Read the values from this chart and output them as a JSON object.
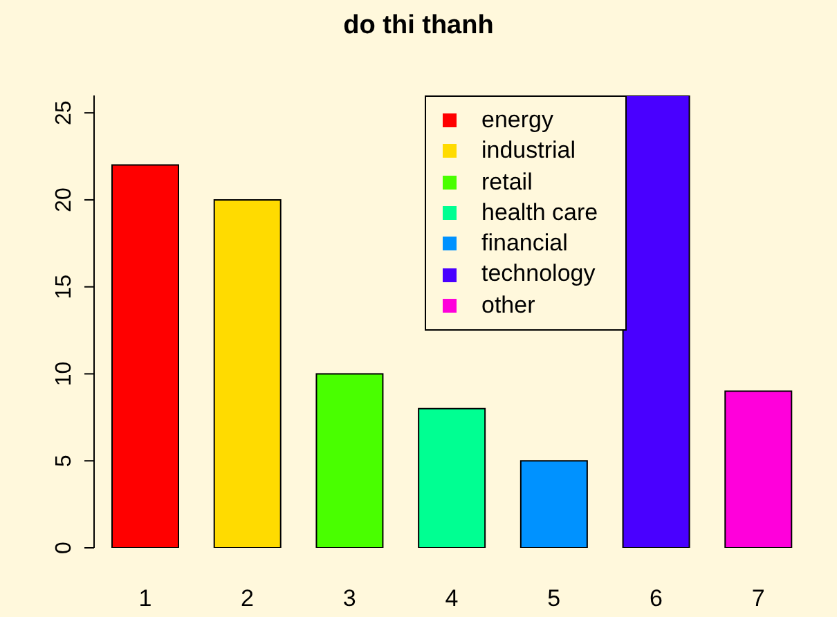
{
  "chart_data": {
    "type": "bar",
    "title": "do thi thanh",
    "stacked": true,
    "categories": [
      "1",
      "2",
      "3",
      "4",
      "5",
      "6",
      "7"
    ],
    "series": [
      {
        "name": "energy",
        "color": "#ff0000",
        "values": [
          22,
          null,
          null,
          null,
          null,
          null,
          null
        ]
      },
      {
        "name": "industrial",
        "color": "#ffdb00",
        "values": [
          null,
          20,
          null,
          null,
          null,
          null,
          null
        ]
      },
      {
        "name": "retail",
        "color": "#49ff00",
        "values": [
          null,
          null,
          10,
          null,
          null,
          null,
          null
        ]
      },
      {
        "name": "health care",
        "color": "#00ff92",
        "values": [
          null,
          null,
          null,
          8,
          null,
          null,
          null
        ]
      },
      {
        "name": "financial",
        "color": "#0092ff",
        "values": [
          null,
          null,
          null,
          null,
          5,
          null,
          null
        ]
      },
      {
        "name": "technology",
        "color": "#4900ff",
        "values": [
          null,
          null,
          null,
          null,
          null,
          26,
          null
        ]
      },
      {
        "name": "other",
        "color": "#ff00db",
        "values": [
          null,
          null,
          null,
          null,
          null,
          null,
          9
        ]
      }
    ],
    "ylim": [
      0,
      26
    ],
    "yticks": [
      0,
      5,
      10,
      15,
      20,
      25
    ],
    "legend": "top right"
  }
}
